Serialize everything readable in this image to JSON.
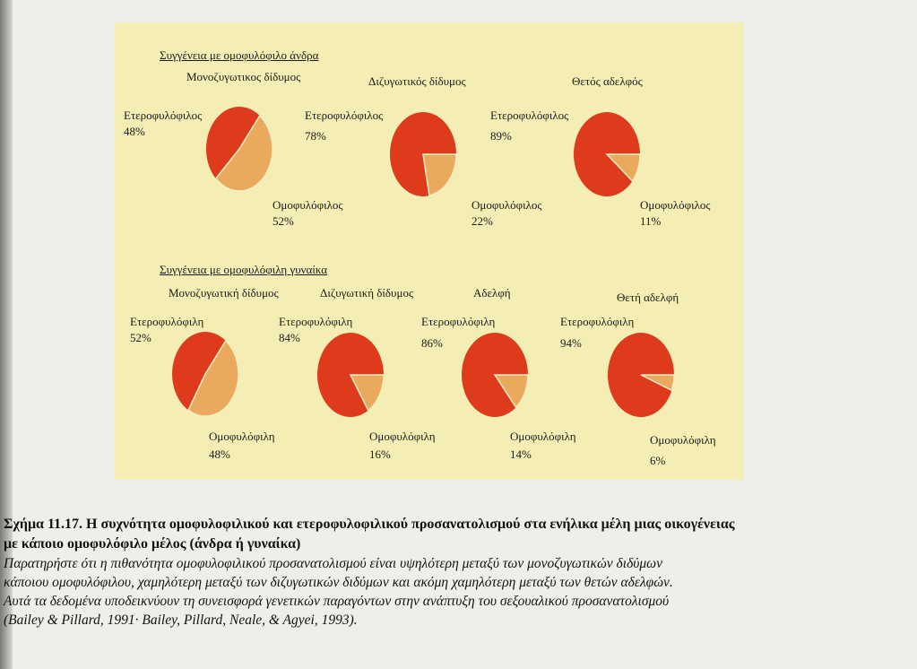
{
  "chart_data": {
    "type": "pie",
    "colors": {
      "heterosexual": "#dd3b1c",
      "homosexual": "#eaaa5e",
      "panel_bg": "#f4eeb4"
    },
    "groups": [
      {
        "title": "Συγγένεια με ομοφυλόφιλο άνδρα",
        "pies": [
          {
            "name": "Μονοζυγωτικος δίδυμος",
            "slices": [
              {
                "label": "Ετεροφυλόφιλος",
                "value": 48,
                "text": "48%"
              },
              {
                "label": "Ομοφυλόφιλος",
                "value": 52,
                "text": "52%"
              }
            ]
          },
          {
            "name": "Διζυγωτικός δίδυμος",
            "slices": [
              {
                "label": "Ετεροφυλόφιλος",
                "value": 78,
                "text": "78%"
              },
              {
                "label": "Ομοφυλόφιλος",
                "value": 22,
                "text": "22%"
              }
            ]
          },
          {
            "name": "Θετός αδελφός",
            "slices": [
              {
                "label": "Ετεροφυλόφιλος",
                "value": 89,
                "text": "89%"
              },
              {
                "label": "Ομοφυλόφιλος",
                "value": 11,
                "text": "11%"
              }
            ]
          }
        ]
      },
      {
        "title": "Συγγένεια με ομοφυλόφιλη γυναίκα",
        "pies": [
          {
            "name": "Μονοζυγωτική δίδυμος",
            "slices": [
              {
                "label": "Ετεροφυλόφιλη",
                "value": 52,
                "text": "52%"
              },
              {
                "label": "Ομοφυλόφιλη",
                "value": 48,
                "text": "48%"
              }
            ]
          },
          {
            "name": "Διζυγωτική δίδυμος",
            "slices": [
              {
                "label": "Ετεροφυλόφιλη",
                "value": 84,
                "text": "84%"
              },
              {
                "label": "Ομοφυλόφιλη",
                "value": 16,
                "text": "16%"
              }
            ]
          },
          {
            "name": "Αδελφή",
            "slices": [
              {
                "label": "Ετεροφυλόφιλη",
                "value": 86,
                "text": "86%"
              },
              {
                "label": "Ομοφυλόφιλη",
                "value": 14,
                "text": "14%"
              }
            ]
          },
          {
            "name": "Θετή αδελφή",
            "slices": [
              {
                "label": "Ετεροφυλόφιλη",
                "value": 94,
                "text": "94%"
              },
              {
                "label": "Ομοφυλόφιλη",
                "value": 6,
                "text": "6%"
              }
            ]
          }
        ]
      }
    ]
  },
  "caption": {
    "title_line1": "Σχήμα 11.17. Η συχνότητα ομοφυλοφιλικού και ετεροφυλοφιλικού προσανατολισμού στα ενήλικα μέλη μιας οικογένειας",
    "title_line2": "με κάποιο ομοφυλόφιλο μέλος (άνδρα ή γυναίκα)",
    "body": [
      "Παρατηρήστε ότι η πιθανότητα ομοφυλοφιλικού προσανατολισμού είναι υψηλότερη μεταξύ των μονοζυγωτικών διδύμων",
      "κάποιου ομοφυλόφιλου, χαμηλότερη μεταξύ των διζυγωτικών διδύμων και ακόμη χαμηλότερη μεταξύ των θετών αδελφών.",
      "Αυτά τα δεδομένα υποδεικνύουν τη συνεισφορά γενετικών παραγόντων στην ανάπτυξη του σεξουαλικού προσανατολισμού",
      "(Bailey & Pillard, 1991· Bailey, Pillard, Neale, & Agyei, 1993)."
    ]
  }
}
